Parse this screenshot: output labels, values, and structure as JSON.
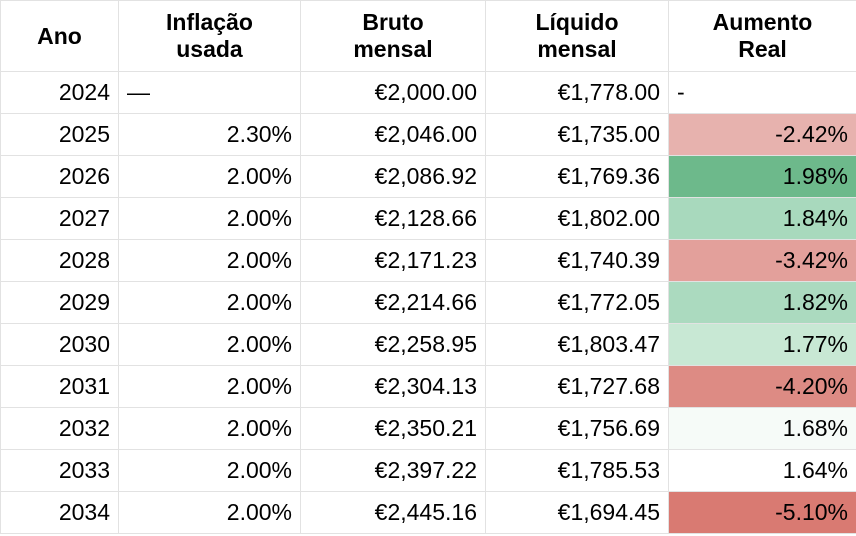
{
  "table": {
    "header": [
      "Ano",
      "Inflação\nusada",
      "Bruto\nmensal",
      "Líquido\nmensal",
      "Aumento\nReal"
    ],
    "rows": [
      [
        "2024",
        "—",
        "€2,000.00",
        "€1,778.00",
        "-"
      ],
      [
        "2025",
        "2.30%",
        "€2,046.00",
        "€1,735.00",
        "-2.42%"
      ],
      [
        "2026",
        "2.00%",
        "€2,086.92",
        "€1,769.36",
        "1.98%"
      ],
      [
        "2027",
        "2.00%",
        "€2,128.66",
        "€1,802.00",
        "1.84%"
      ],
      [
        "2028",
        "2.00%",
        "€2,171.23",
        "€1,740.39",
        "-3.42%"
      ],
      [
        "2029",
        "2.00%",
        "€2,214.66",
        "€1,772.05",
        "1.82%"
      ],
      [
        "2030",
        "2.00%",
        "€2,258.95",
        "€1,803.47",
        "1.77%"
      ],
      [
        "2031",
        "2.00%",
        "€2,304.13",
        "€1,727.68",
        "-4.20%"
      ],
      [
        "2032",
        "2.00%",
        "€2,350.21",
        "€1,756.69",
        "1.68%"
      ],
      [
        "2033",
        "2.00%",
        "€2,397.22",
        "€1,785.53",
        "1.64%"
      ],
      [
        "2034",
        "2.00%",
        "€2,445.16",
        "€1,694.45",
        "-5.10%"
      ]
    ]
  }
}
